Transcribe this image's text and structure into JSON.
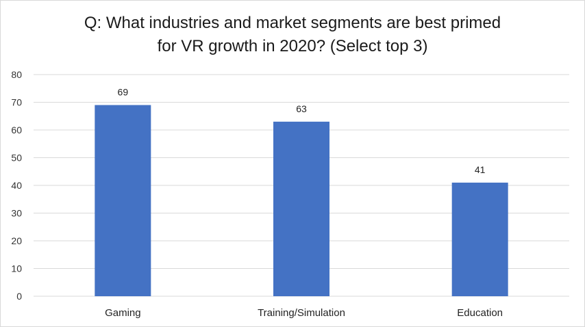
{
  "chart_data": {
    "type": "bar",
    "title_lines": [
      "Q: What industries and market segments are best primed",
      "for VR growth in 2020? (Select top 3)"
    ],
    "categories": [
      "Gaming",
      "Training/Simulation",
      "Education"
    ],
    "values": [
      69,
      63,
      41
    ],
    "data_labels": [
      "69",
      "63",
      "41"
    ],
    "yticks": [
      "0",
      "10",
      "20",
      "30",
      "40",
      "50",
      "60",
      "70",
      "80"
    ],
    "ylim": [
      0,
      80
    ],
    "xlabel": "",
    "ylabel": "",
    "grid": true,
    "legend": "none",
    "bar_color": "#4472c4",
    "grid_color": "#d9d9d9"
  }
}
